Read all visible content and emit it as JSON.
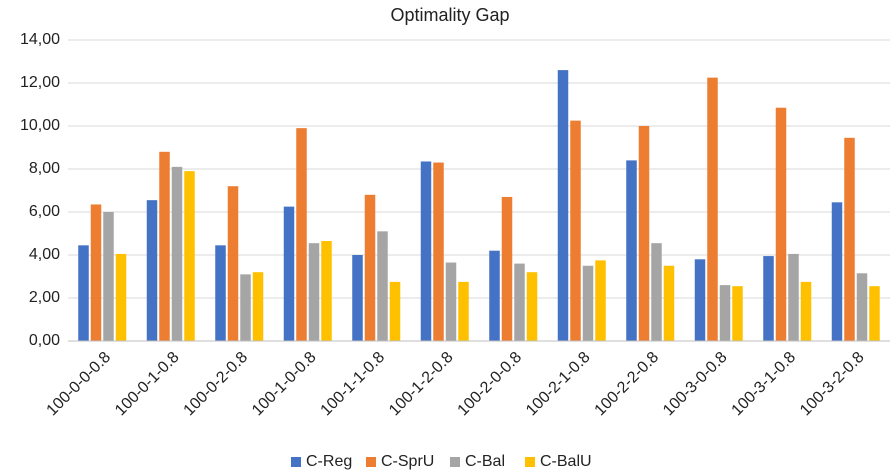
{
  "chart_data": {
    "type": "bar",
    "title": "Optimality Gap",
    "categories": [
      "100-0-0-0.8",
      "100-0-1-0.8",
      "100-0-2-0.8",
      "100-1-0-0.8",
      "100-1-1-0.8",
      "100-1-2-0.8",
      "100-2-0-0.8",
      "100-2-1-0.8",
      "100-2-2-0.8",
      "100-3-0-0.8",
      "100-3-1-0.8",
      "100-3-2-0.8"
    ],
    "series": [
      {
        "name": "C-Reg",
        "color": "#4472c4",
        "values": [
          4.45,
          6.55,
          4.45,
          6.25,
          4.0,
          8.35,
          4.2,
          12.6,
          8.4,
          3.8,
          3.95,
          6.45
        ]
      },
      {
        "name": "C-SprU",
        "color": "#ed7d31",
        "values": [
          6.35,
          8.8,
          7.2,
          9.9,
          6.8,
          8.3,
          6.7,
          10.25,
          10.0,
          12.25,
          10.85,
          9.45
        ]
      },
      {
        "name": "C-Bal",
        "color": "#a5a5a5",
        "values": [
          6.0,
          8.1,
          3.1,
          4.55,
          5.1,
          3.65,
          3.6,
          3.5,
          4.55,
          2.6,
          4.05,
          3.15
        ]
      },
      {
        "name": "C-BalU",
        "color": "#ffc000",
        "values": [
          4.05,
          7.9,
          3.2,
          4.65,
          2.75,
          2.75,
          3.2,
          3.75,
          3.5,
          2.55,
          2.75,
          2.55
        ]
      }
    ],
    "ylim": [
      0,
      14
    ],
    "yticks": [
      {
        "value": 0,
        "label": "0,00"
      },
      {
        "value": 2,
        "label": "2,00"
      },
      {
        "value": 4,
        "label": "4,00"
      },
      {
        "value": 6,
        "label": "6,00"
      },
      {
        "value": 8,
        "label": "8,00"
      },
      {
        "value": 10,
        "label": "10,00"
      },
      {
        "value": 12,
        "label": "12,00"
      },
      {
        "value": 14,
        "label": "14,00"
      }
    ],
    "grid": true,
    "legend": "bottom"
  }
}
